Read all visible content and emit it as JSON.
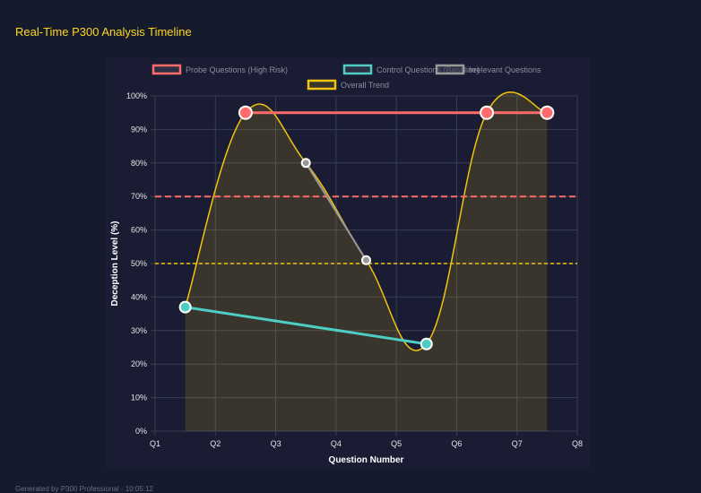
{
  "header": {
    "title": "Real-Time P300 Analysis Timeline"
  },
  "footer": {
    "text": "Generated by P300 Professional - 10:05:12"
  },
  "chart_data": {
    "type": "line",
    "title": "",
    "xlabel": "Question Number",
    "ylabel": "Deception Level (%)",
    "x_ticks": [
      "Q1",
      "Q2",
      "Q3",
      "Q4",
      "Q5",
      "Q6",
      "Q7",
      "Q8"
    ],
    "y_ticks": [
      "0%",
      "10%",
      "20%",
      "30%",
      "40%",
      "50%",
      "60%",
      "70%",
      "80%",
      "90%",
      "100%"
    ],
    "ylim": [
      0,
      100
    ],
    "grid": true,
    "legend_placement": "top",
    "series": [
      {
        "name": "Probe Questions (High Risk)",
        "color": "#ff6b6b",
        "points": [
          [
            2.5,
            95
          ],
          [
            6.5,
            95
          ],
          [
            7.5,
            95
          ]
        ]
      },
      {
        "name": "Control Questions (Baseline)",
        "color": "#4ecdc4",
        "points": [
          [
            1.5,
            37
          ],
          [
            5.5,
            26
          ]
        ]
      },
      {
        "name": "Irrelevant Questions",
        "color": "#999999",
        "points": [
          [
            3.5,
            80
          ],
          [
            4.5,
            51
          ]
        ]
      },
      {
        "name": "Overall Trend",
        "color": "#f1c40f",
        "fill": true,
        "smooth": true,
        "points": [
          [
            1.5,
            37
          ],
          [
            2.5,
            95
          ],
          [
            3.5,
            80
          ],
          [
            4.5,
            51
          ],
          [
            5.5,
            26
          ],
          [
            6.5,
            95
          ],
          [
            7.5,
            95
          ]
        ]
      }
    ],
    "thresholds": [
      {
        "value": 70,
        "color": "#ff6b6b"
      },
      {
        "value": 50,
        "color": "#f1c40f"
      }
    ]
  }
}
